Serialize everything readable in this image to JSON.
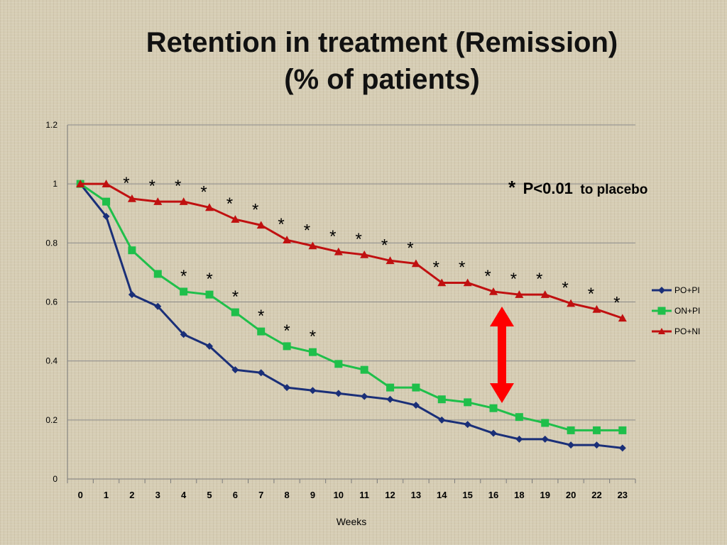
{
  "title_line1": "Retention in treatment (Remission)",
  "title_line2": "(% of patients)",
  "annotation": {
    "star": "*",
    "pvalue": "P<0.01",
    "suffix": "to placebo"
  },
  "chart_data": {
    "type": "line",
    "xlabel": "Weeks",
    "ylabel": "",
    "categories": [
      "0",
      "1",
      "2",
      "3",
      "4",
      "5",
      "6",
      "7",
      "8",
      "9",
      "10",
      "11",
      "12",
      "13",
      "14",
      "15",
      "16",
      "18",
      "19",
      "20",
      "22",
      "23"
    ],
    "ylim": [
      0,
      1.2
    ],
    "yticks": [
      "0",
      "0.2",
      "0.4",
      "0.6",
      "0.8",
      "1",
      "1.2"
    ],
    "grid": true,
    "legend": "right",
    "series": [
      {
        "name": "PO+PI",
        "color": "#1a2f78",
        "marker": "diamond",
        "values": [
          1.0,
          0.89,
          0.625,
          0.585,
          0.49,
          0.45,
          0.37,
          0.36,
          0.31,
          0.3,
          0.29,
          0.28,
          0.27,
          0.25,
          0.2,
          0.185,
          0.155,
          0.135,
          0.135,
          0.115,
          0.115,
          0.105
        ]
      },
      {
        "name": "ON+PI",
        "color": "#1fbf4a",
        "marker": "square",
        "values": [
          1.0,
          0.94,
          0.775,
          0.695,
          0.635,
          0.625,
          0.565,
          0.5,
          0.45,
          0.43,
          0.39,
          0.37,
          0.31,
          0.31,
          0.27,
          0.26,
          0.24,
          0.21,
          0.19,
          0.165,
          0.165,
          0.165
        ]
      },
      {
        "name": "PO+NI",
        "color": "#c01010",
        "marker": "triangle",
        "values": [
          1.0,
          1.0,
          0.95,
          0.94,
          0.94,
          0.92,
          0.88,
          0.86,
          0.81,
          0.79,
          0.77,
          0.76,
          0.74,
          0.73,
          0.665,
          0.665,
          0.635,
          0.625,
          0.625,
          0.595,
          0.575,
          0.545
        ]
      }
    ],
    "significance_marks": "*",
    "arrow_color": "#ff0000"
  }
}
